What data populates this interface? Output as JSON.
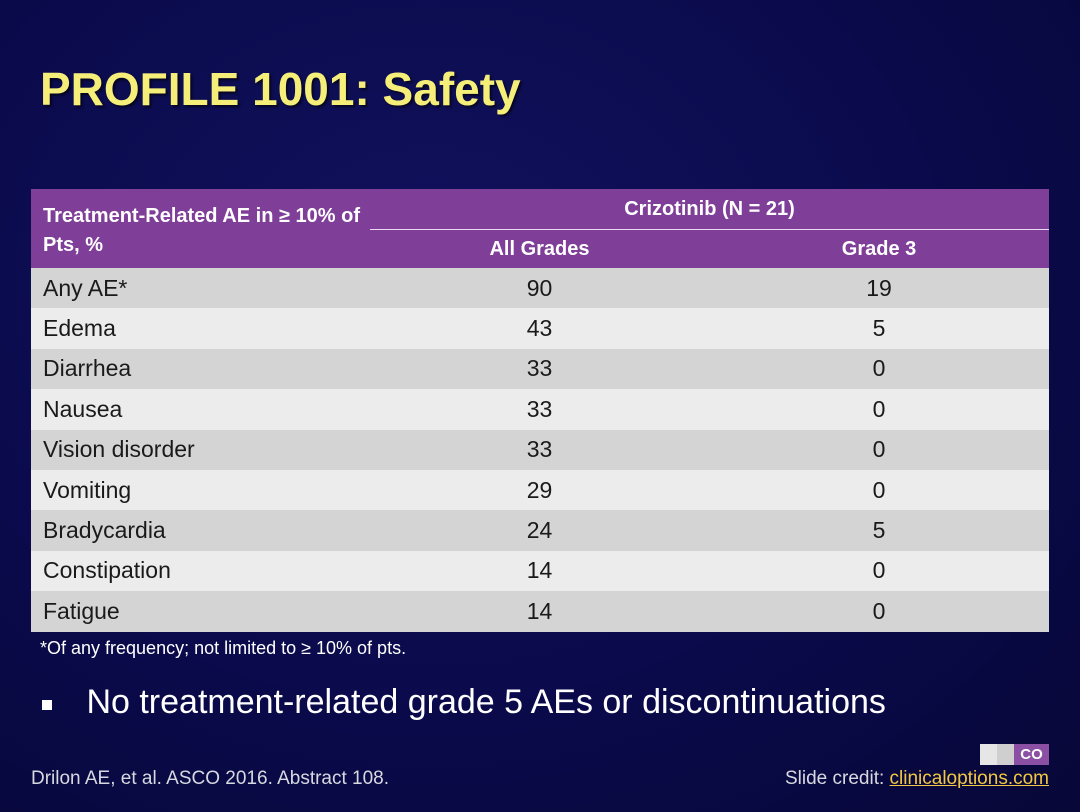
{
  "slide": {
    "title": "PROFILE 1001: Safety",
    "table": {
      "row_header": "Treatment-Related AE in ≥ 10%  of Pts, %",
      "group_header": "Crizotinib (N = 21)",
      "columns": [
        "All Grades",
        "Grade 3"
      ],
      "rows": [
        {
          "name": "Any AE*",
          "all_grades": "90",
          "grade3": "19"
        },
        {
          "name": "Edema",
          "all_grades": "43",
          "grade3": "5"
        },
        {
          "name": "Diarrhea",
          "all_grades": "33",
          "grade3": "0"
        },
        {
          "name": "Nausea",
          "all_grades": "33",
          "grade3": "0"
        },
        {
          "name": "Vision disorder",
          "all_grades": "33",
          "grade3": "0"
        },
        {
          "name": "Vomiting",
          "all_grades": "29",
          "grade3": "0"
        },
        {
          "name": "Bradycardia",
          "all_grades": "24",
          "grade3": "5"
        },
        {
          "name": "Constipation",
          "all_grades": "14",
          "grade3": "0"
        },
        {
          "name": "Fatigue",
          "all_grades": "14",
          "grade3": "0"
        }
      ]
    },
    "footnote": "*Of any frequency; not limited to ≥ 10% of pts.",
    "bullet": "No treatment-related grade 5 AEs or discontinuations",
    "citation": "Drilon AE, et al. ASCO 2016. Abstract 108.",
    "credit_label": "Slide credit: ",
    "credit_link": "clinicaloptions.com",
    "logo_text": "CO"
  },
  "colors": {
    "background": "#0a0a4a",
    "title": "#f5ef7a",
    "header": "#7f3f98",
    "row_odd": "#d4d4d4",
    "row_even": "#ececec",
    "link": "#f2c842"
  }
}
